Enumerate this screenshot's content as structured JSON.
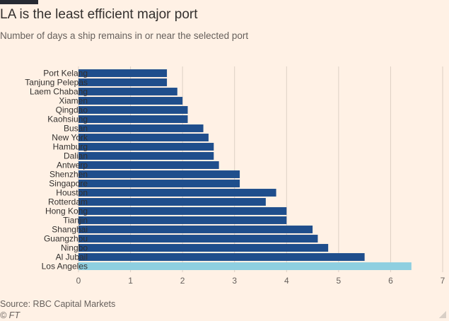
{
  "title": "LA is the least efficient major port",
  "subtitle": "Number of days a ship remains in or near the selected port",
  "source": "Source: RBC Capital Markets",
  "credit": "© FT",
  "colors": {
    "bar": "#1f4e8c",
    "highlight": "#8ecfe0",
    "grid": "#ddd0c4",
    "text": "#33302e",
    "muted": "#66605c",
    "background": "#fff1e5"
  },
  "chart_data": {
    "type": "bar",
    "orientation": "horizontal",
    "title": "LA is the least efficient major port",
    "subtitle": "Number of days a ship remains in or near the selected port",
    "categories": [
      "Port Kelang",
      "Tanjung Pelepas",
      "Laem Chabang",
      "Xiamen",
      "Qingdao",
      "Kaohsiung",
      "Busan",
      "New York",
      "Hamburg",
      "Dalian",
      "Antwerp",
      "Shenzhen",
      "Singapore",
      "Houston",
      "Rotterdam",
      "Hong Kong",
      "Tianjin",
      "Shanghai",
      "Guangzhou",
      "Ningbo",
      "Al Jubail",
      "Los Angeles"
    ],
    "values": [
      1.7,
      1.7,
      1.9,
      2.0,
      2.1,
      2.1,
      2.4,
      2.5,
      2.6,
      2.6,
      2.7,
      3.1,
      3.1,
      3.8,
      3.6,
      4.0,
      4.0,
      4.5,
      4.6,
      4.8,
      5.5,
      6.4
    ],
    "highlight": "Los Angeles",
    "xlim": [
      0,
      7
    ],
    "xticks": [
      0,
      1,
      2,
      3,
      4,
      5,
      6,
      7
    ],
    "grid": true,
    "legend": "none"
  }
}
